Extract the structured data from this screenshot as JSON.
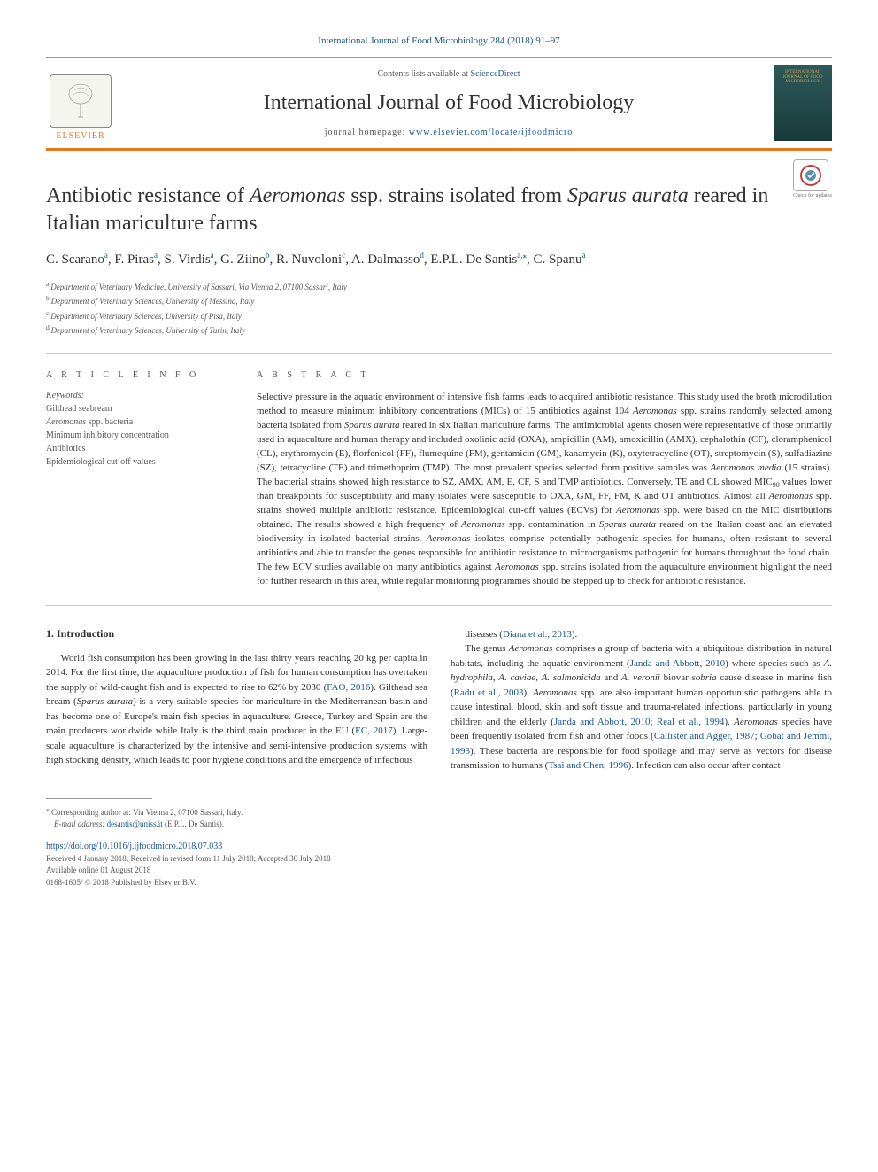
{
  "journal_ref": "International Journal of Food Microbiology 284 (2018) 91–97",
  "header": {
    "contents_prefix": "Contents lists available at ",
    "contents_link": "ScienceDirect",
    "journal_name": "International Journal of Food Microbiology",
    "homepage_prefix": "journal homepage: ",
    "homepage_url": "www.elsevier.com/locate/ijfoodmicro",
    "publisher": "ELSEVIER",
    "cover_text": "INTERNATIONAL JOURNAL OF FOOD MICROBIOLOGY"
  },
  "check_updates": {
    "icon_glyph": "✓",
    "label": "Check for updates"
  },
  "title_parts": {
    "p1": "Antibiotic resistance of ",
    "i1": "Aeromonas",
    "p2": " ssp. strains isolated from ",
    "i2": "Sparus aurata",
    "p3": " reared in Italian mariculture farms"
  },
  "authors_line": "C. Scarano^a, F. Piras^a, S. Virdis^a, G. Ziino^b, R. Nuvoloni^c, A. Dalmasso^d, E.P.L. De Santis^a*, C. Spanu^a",
  "authors": [
    {
      "name": "C. Scarano",
      "aff": "a"
    },
    {
      "name": "F. Piras",
      "aff": "a"
    },
    {
      "name": "S. Virdis",
      "aff": "a"
    },
    {
      "name": "G. Ziino",
      "aff": "b"
    },
    {
      "name": "R. Nuvoloni",
      "aff": "c"
    },
    {
      "name": "A. Dalmasso",
      "aff": "d"
    },
    {
      "name": "E.P.L. De Santis",
      "aff": "a,",
      "corr": "⁎"
    },
    {
      "name": "C. Spanu",
      "aff": "a"
    }
  ],
  "affiliations": [
    {
      "sup": "a",
      "text": "Department of Veterinary Medicine, University of Sassari, Via Vienna 2, 07100 Sassari, Italy"
    },
    {
      "sup": "b",
      "text": "Department of Veterinary Sciences, University of Messina, Italy"
    },
    {
      "sup": "c",
      "text": "Department of Veterinary Sciences, University of Pisa, Italy"
    },
    {
      "sup": "d",
      "text": "Department of Veterinary Sciences, University of Turin, Italy"
    }
  ],
  "article_info": {
    "heading": "A R T I C L E  I N F O",
    "keywords_label": "Keywords:",
    "keywords": [
      {
        "text": "Gilthead seabream"
      },
      {
        "pre": "",
        "italic": "Aeromonas",
        "post": " spp. bacteria"
      },
      {
        "text": "Minimum inhibitory concentration"
      },
      {
        "text": "Antibiotics"
      },
      {
        "text": "Epidemiological cut-off values"
      }
    ]
  },
  "abstract": {
    "heading": "A B S T R A C T",
    "text_parts": [
      {
        "t": "Selective pressure in the aquatic environment of intensive fish farms leads to acquired antibiotic resistance. This study used the broth microdilution method to measure minimum inhibitory concentrations (MICs) of 15 antibiotics against 104 "
      },
      {
        "i": "Aeromonas"
      },
      {
        "t": " spp. strains randomly selected among bacteria isolated from "
      },
      {
        "i": "Sparus aurata"
      },
      {
        "t": " reared in six Italian mariculture farms. The antimicrobial agents chosen were representative of those primarily used in aquaculture and human therapy and included oxolinic acid (OXA), ampicillin (AM), amoxicillin (AMX), cephalothin (CF), cloramphenicol (CL), erythromycin (E), florfenicol (FF), flumequine (FM), gentamicin (GM), kanamycin (K), oxytetracycline (OT), streptomycin (S), sulfadiazine (SZ), tetracycline (TE) and trimethoprim (TMP). The most prevalent species selected from positive samples was "
      },
      {
        "i": "Aeromonas media"
      },
      {
        "t": " (15 strains). The bacterial strains showed high resistance to SZ, AMX, AM, E, CF, S and TMP antibiotics. Conversely, TE and CL showed MIC"
      },
      {
        "sub": "90"
      },
      {
        "t": " values lower than breakpoints for susceptibility and many isolates were susceptible to OXA, GM, FF, FM, K and OT antibiotics. Almost all "
      },
      {
        "i": "Aeromonas"
      },
      {
        "t": " spp. strains showed multiple antibiotic resistance. Epidemiological cut-off values (ECVs) for "
      },
      {
        "i": "Aeromonas"
      },
      {
        "t": " spp. were based on the MIC distributions obtained. The results showed a high frequency of "
      },
      {
        "i": "Aeromonas"
      },
      {
        "t": " spp. contamination in "
      },
      {
        "i": "Sparus aurata"
      },
      {
        "t": " reared on the Italian coast and an elevated biodiversity in isolated bacterial strains. "
      },
      {
        "i": "Aeromonas"
      },
      {
        "t": " isolates comprise potentially pathogenic species for humans, often resistant to several antibiotics and able to transfer the genes responsible for antibiotic resistance to microorganisms pathogenic for humans throughout the food chain. The few ECV studies available on many antibiotics against "
      },
      {
        "i": "Aeromonas"
      },
      {
        "t": " spp. strains isolated from the aquaculture environment highlight the need for further research in this area, while regular monitoring programmes should be stepped up to check for antibiotic resistance."
      }
    ]
  },
  "body": {
    "intro_heading": "1. Introduction",
    "col1_parts": [
      {
        "t": "World fish consumption has been growing in the last thirty years reaching 20 kg per capita in 2014. For the first time, the aquaculture production of fish for human consumption has overtaken the supply of wild-caught fish and is expected to rise to 62% by 2030 ("
      },
      {
        "a": "FAO, 2016"
      },
      {
        "t": "). Gilthead sea bream ("
      },
      {
        "i": "Sparus aurata"
      },
      {
        "t": ") is a very suitable species for mariculture in the Mediterranean basin and has become one of Europe's main fish species in aquaculture. Greece, Turkey and Spain are the main producers worldwide while Italy is the third main producer in the EU ("
      },
      {
        "a": "EC, 2017"
      },
      {
        "t": "). Large-scale aquaculture is characterized by the intensive and semi-intensive production systems with high stocking density, which leads to poor hygiene conditions and the emergence of infectious"
      }
    ],
    "col2_parts": [
      {
        "t": "diseases ("
      },
      {
        "a": "Diana et al., 2013"
      },
      {
        "t": ")."
      },
      {
        "br": true
      },
      {
        "t": "The genus "
      },
      {
        "i": "Aeromonas"
      },
      {
        "t": " comprises a group of bacteria with a ubiquitous distribution in natural habitats, including the aquatic environment ("
      },
      {
        "a": "Janda and Abbott, 2010"
      },
      {
        "t": ") where species such as "
      },
      {
        "i": "A. hydrophila"
      },
      {
        "t": ", "
      },
      {
        "i": "A. caviae"
      },
      {
        "t": ", "
      },
      {
        "i": "A. salmonicida"
      },
      {
        "t": " and "
      },
      {
        "i": "A. veronii"
      },
      {
        "t": " biovar "
      },
      {
        "i": "sobria"
      },
      {
        "t": " cause disease in marine fish ("
      },
      {
        "a": "Radu et al., 2003"
      },
      {
        "t": "). "
      },
      {
        "i": "Aeromonas"
      },
      {
        "t": " spp. are also important human opportunistic pathogens able to cause intestinal, blood, skin and soft tissue and trauma-related infections, particularly in young children and the elderly ("
      },
      {
        "a": "Janda and Abbott, 2010"
      },
      {
        "t": "; "
      },
      {
        "a": "Real et al., 1994"
      },
      {
        "t": "). "
      },
      {
        "i": "Aeromonas"
      },
      {
        "t": " species have been frequently isolated from fish and other foods ("
      },
      {
        "a": "Callister and Agger, 1987"
      },
      {
        "t": "; "
      },
      {
        "a": "Gobat and Jemmi, 1993"
      },
      {
        "t": "). These bacteria are responsible for food spoilage and may serve as vectors for disease transmission to humans ("
      },
      {
        "a": "Tsai and Chen, 1996"
      },
      {
        "t": "). Infection can also occur after contact"
      }
    ]
  },
  "footnotes": {
    "corr_marker": "⁎",
    "corr_text": "Corresponding author at: Via Vienna 2, 07100 Sassari, Italy.",
    "email_label": "E-mail address:",
    "email": "desantis@uniss.it",
    "email_author": "(E.P.L. De Santis)."
  },
  "doi": "https://doi.org/10.1016/j.ijfoodmicro.2018.07.033",
  "history": [
    "Received 4 January 2018; Received in revised form 11 July 2018; Accepted 30 July 2018",
    "Available online 01 August 2018",
    "0168-1605/ © 2018 Published by Elsevier B.V."
  ],
  "colors": {
    "accent_orange": "#e87722",
    "link_blue": "#1a5490",
    "text": "#333333",
    "muted": "#555555"
  }
}
